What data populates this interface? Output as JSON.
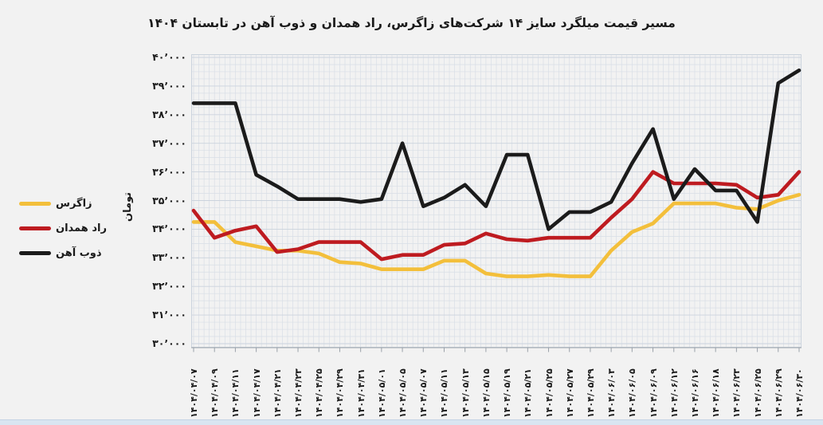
{
  "title": "مسیر قیمت میلگرد سایز ۱۴ شرکت‌های زاگرس، راد همدان و ذوب آهن در تابستان ۱۴۰۴",
  "y_axis": {
    "unit_label": "تومان",
    "min": 30000,
    "max": 40000,
    "minor_gridline_step": 250,
    "tick_values": [
      40000,
      39000,
      38000,
      37000,
      36000,
      35000,
      34000,
      33000,
      32000,
      31000,
      30000
    ],
    "tick_labels": [
      "۴۰٬۰۰۰",
      "۳۹٬۰۰۰",
      "۳۸٬۰۰۰",
      "۳۷٬۰۰۰",
      "۳۶٬۰۰۰",
      "۳۵٬۰۰۰",
      "۳۴٬۰۰۰",
      "۳۳٬۰۰۰",
      "۳۲٬۰۰۰",
      "۳۱٬۰۰۰",
      "۳۰٬۰۰۰"
    ]
  },
  "legend": {
    "position": "left",
    "items": [
      {
        "id": "zagros",
        "label": "زاگرس",
        "color": "#F3BF3B"
      },
      {
        "id": "rad-hamedan",
        "label": "راد همدان",
        "color": "#BE1B20"
      },
      {
        "id": "zob-ahan",
        "label": "ذوب آهن",
        "color": "#1B1B1B"
      }
    ]
  },
  "colors": {
    "background": "#F2F2F2",
    "grid": "#D8DEE6",
    "grid_major": "#CBD3DD",
    "axis": "#9AA1A9",
    "text": "#1A1A1A",
    "footer_strip": "#D9E5F1"
  },
  "chart_data": {
    "type": "line",
    "title": "مسیر قیمت میلگرد سایز ۱۴ شرکت‌های زاگرس، راد همدان و ذوب آهن در تابستان ۱۴۰۴",
    "ylabel": "تومان",
    "ylim": [
      30000,
      40000
    ],
    "grid": true,
    "legend_position": "left",
    "categories": [
      "۱۴۰۴/۰۴/۰۷",
      "۱۴۰۴/۰۴/۰۹",
      "۱۴۰۴/۰۴/۱۱",
      "۱۴۰۴/۰۴/۱۷",
      "۱۴۰۴/۰۴/۲۱",
      "۱۴۰۴/۰۴/۲۳",
      "۱۴۰۴/۰۴/۲۵",
      "۱۴۰۴/۰۴/۲۹",
      "۱۴۰۴/۰۴/۳۱",
      "۱۴۰۴/۰۵/۰۱",
      "۱۴۰۴/۰۵/۰۵",
      "۱۴۰۴/۰۵/۰۷",
      "۱۴۰۴/۰۵/۱۱",
      "۱۴۰۴/۰۵/۱۳",
      "۱۴۰۴/۰۵/۱۵",
      "۱۴۰۴/۰۵/۱۹",
      "۱۴۰۴/۰۵/۲۱",
      "۱۴۰۴/۰۵/۲۵",
      "۱۴۰۴/۰۵/۲۷",
      "۱۴۰۴/۰۵/۲۹",
      "۱۴۰۴/۰۶/۰۳",
      "۱۴۰۴/۰۶/۰۵",
      "۱۴۰۴/۰۶/۰۹",
      "۱۴۰۴/۰۶/۱۲",
      "۱۴۰۴/۰۶/۱۶",
      "۱۴۰۴/۰۶/۱۸",
      "۱۴۰۴/۰۶/۲۳",
      "۱۴۰۴/۰۶/۲۵",
      "۱۴۰۴/۰۶/۲۹",
      "۱۴۰۴/۰۶/۳۰"
    ],
    "series": [
      {
        "id": "zagros",
        "name": "زاگرس",
        "color": "#F3BF3B",
        "values": [
          34250,
          34250,
          33550,
          33400,
          33250,
          33250,
          33150,
          32850,
          32800,
          32600,
          32600,
          32600,
          32900,
          32900,
          32450,
          32350,
          32350,
          32400,
          32350,
          32350,
          33250,
          33900,
          34200,
          34900,
          34900,
          34900,
          34750,
          34700,
          35000,
          35200
        ]
      },
      {
        "id": "rad-hamedan",
        "name": "راد همدان",
        "color": "#BE1B20",
        "values": [
          34650,
          33700,
          33950,
          34100,
          33200,
          33300,
          33550,
          33550,
          33550,
          32950,
          33100,
          33100,
          33450,
          33500,
          33850,
          33650,
          33600,
          33700,
          33700,
          33700,
          34400,
          35050,
          36000,
          35600,
          35600,
          35600,
          35550,
          35100,
          35200,
          36000
        ]
      },
      {
        "id": "zob-ahan",
        "name": "ذوب آهن",
        "color": "#1B1B1B",
        "values": [
          38400,
          38400,
          38400,
          35900,
          35500,
          35050,
          35050,
          35050,
          34950,
          35050,
          37000,
          34800,
          35100,
          35550,
          34800,
          36600,
          36600,
          34000,
          34600,
          34600,
          34950,
          36300,
          37500,
          35050,
          36100,
          35350,
          35350,
          34250,
          39100,
          39550
        ]
      }
    ]
  }
}
